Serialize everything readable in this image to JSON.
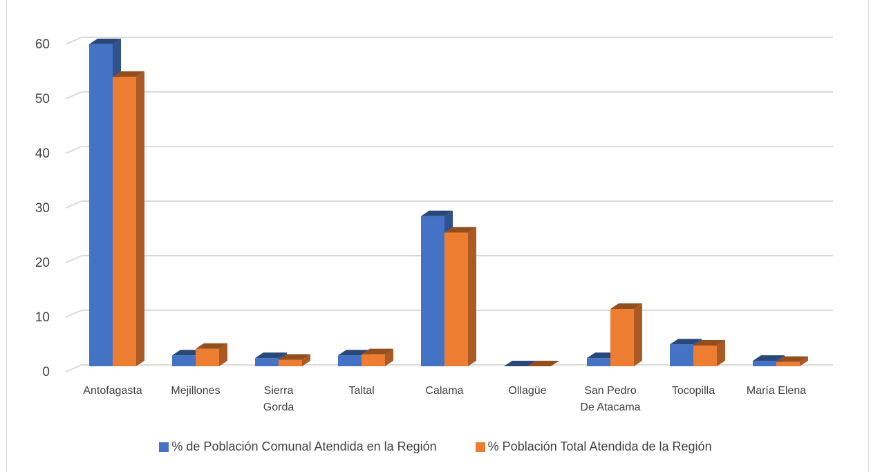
{
  "chart_data": {
    "type": "bar",
    "title": "",
    "categories": [
      "Antofagasta",
      "Mejillones",
      "Sierra\nGorda",
      "Taltal",
      "Calama",
      "Ollagüe",
      "San Pedro\nDe Atacama",
      "Tocopilla",
      "María Elena"
    ],
    "series": [
      {
        "name": "% de Población Comunal Atendida en la Región",
        "color": "#4472C4",
        "values": [
          59,
          2,
          1.5,
          2,
          27.5,
          0,
          1.5,
          4,
          1
        ]
      },
      {
        "name": "% Población Total Atendida de la Región",
        "color": "#ED7D31",
        "values": [
          53,
          3.2,
          1.2,
          2.2,
          24.5,
          0,
          10.5,
          3.8,
          0.8
        ]
      }
    ],
    "yticks": [
      "0",
      "10",
      "20",
      "30",
      "40",
      "50",
      "60"
    ],
    "ylim": [
      0,
      60
    ],
    "grid": true,
    "legend_position": "bottom",
    "style": "3d-column"
  }
}
